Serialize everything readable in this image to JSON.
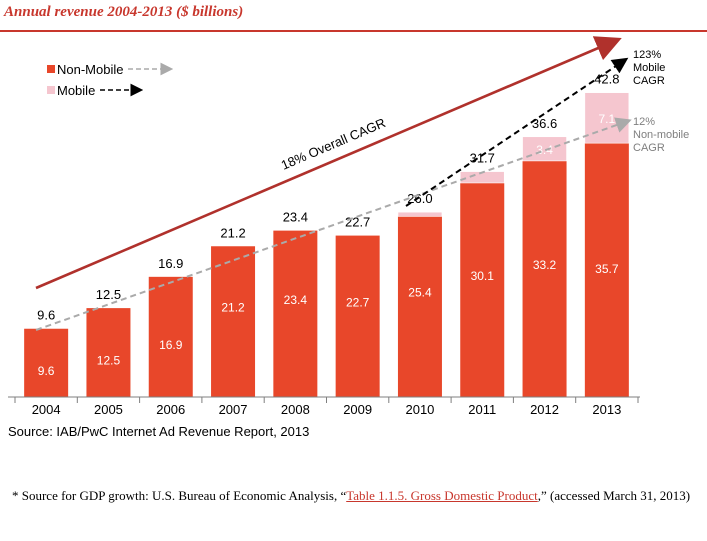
{
  "colors": {
    "accent": "#c8372d",
    "non_mobile": "#e8472a",
    "mobile": "#f5c6cf",
    "trend": "#b0312c",
    "nonmobile_cagr_line": "#aaaaaa",
    "mobile_cagr_line": "#000000"
  },
  "header": {
    "title": "Annual revenue 2004-2013 ($ billions)"
  },
  "chart_data": {
    "type": "bar",
    "stacked": true,
    "title": "Annual revenue 2004-2013 ($ billions)",
    "categories": [
      "2004",
      "2005",
      "2006",
      "2007",
      "2008",
      "2009",
      "2010",
      "2011",
      "2012",
      "2013"
    ],
    "series": [
      {
        "name": "Non-Mobile",
        "values": [
          9.6,
          12.5,
          16.9,
          21.2,
          23.4,
          22.7,
          25.4,
          30.1,
          33.2,
          35.7
        ]
      },
      {
        "name": "Mobile",
        "values": [
          0,
          0,
          0,
          0,
          0,
          0,
          0.6,
          1.6,
          3.4,
          7.1
        ]
      }
    ],
    "totals": [
      9.6,
      12.5,
      16.9,
      21.2,
      23.4,
      22.7,
      26.0,
      31.7,
      36.6,
      42.8
    ],
    "total_labels": [
      "9.6",
      "12.5",
      "16.9",
      "21.2",
      "23.4",
      "22.7",
      "26.0",
      "31.7",
      "36.6",
      "42.8"
    ],
    "nonmobile_labels": [
      "9.6",
      "12.5",
      "16.9",
      "21.2",
      "23.4",
      "22.7",
      "25.4",
      "30.1",
      "33.2",
      "35.7"
    ],
    "mobile_labels": [
      "",
      "",
      "",
      "",
      "",
      "",
      "",
      "",
      "3.4",
      "7.1"
    ],
    "ylim": [
      0,
      48
    ],
    "xlabel": "",
    "ylabel": "",
    "legend": [
      {
        "name": "Non-Mobile",
        "line": "dashed-gray"
      },
      {
        "name": "Mobile",
        "line": "dashed-black"
      }
    ],
    "annotations": {
      "overall_cagr": "18% Overall CAGR",
      "mobile_cagr": [
        "123%",
        "Mobile",
        "CAGR"
      ],
      "nonmobile_cagr": [
        "12%",
        "Non-mobile",
        "CAGR"
      ]
    }
  },
  "source": "Source: IAB/PwC Internet Ad Revenue Report, 2013",
  "footnote": {
    "prefix": "*  Source for GDP growth: U.S. Bureau of Economic Analysis, “",
    "link": "Table 1.1.5. Gross Domestic Product",
    "suffix": ",” (accessed March 31, 2013)"
  }
}
